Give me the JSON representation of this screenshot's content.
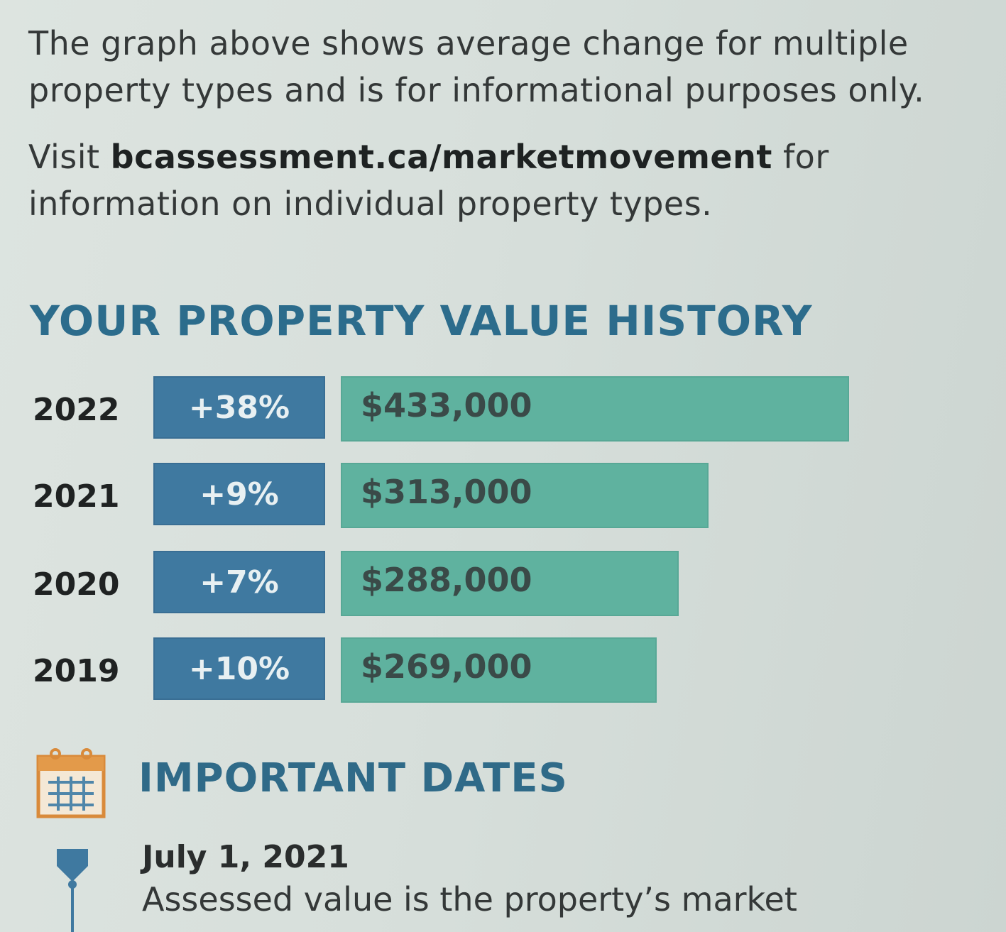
{
  "intro": {
    "line1": "The graph above shows average change for multiple property types and is for informational purposes only.",
    "visit_prefix": "Visit ",
    "visit_url": "bcassessment.ca/marketmovement",
    "visit_suffix": " for information on individual property types."
  },
  "history": {
    "title": "YOUR PROPERTY VALUE HISTORY"
  },
  "chart_data": {
    "type": "bar",
    "title": "YOUR PROPERTY VALUE HISTORY",
    "categories": [
      "2022",
      "2021",
      "2020",
      "2019"
    ],
    "values": [
      433000,
      313000,
      288000,
      269000
    ],
    "value_labels": [
      "$433,000",
      "$313,000",
      "$288,000",
      "$269,000"
    ],
    "change_labels": [
      "+38%",
      "+9%",
      "+7%",
      "+10%"
    ],
    "orientation": "horizontal",
    "colors": {
      "change": "#3f79a0",
      "value": "#5fb29f"
    }
  },
  "important_dates": {
    "title": "IMPORTANT DATES",
    "icon": "calendar-icon",
    "items": [
      {
        "date": "July 1, 2021",
        "description": "Assessed value is the property’s market"
      }
    ]
  }
}
